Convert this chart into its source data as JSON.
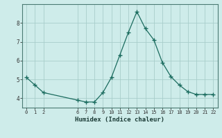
{
  "x": [
    0,
    1,
    2,
    6,
    7,
    8,
    9,
    10,
    11,
    12,
    13,
    14,
    15,
    16,
    17,
    18,
    19,
    20,
    21,
    22
  ],
  "y": [
    5.1,
    4.7,
    4.3,
    3.9,
    3.8,
    3.8,
    4.3,
    5.1,
    6.3,
    7.5,
    8.6,
    7.7,
    7.1,
    5.9,
    5.15,
    4.7,
    4.35,
    4.2,
    4.2,
    4.2
  ],
  "xticks": [
    0,
    1,
    2,
    6,
    7,
    8,
    9,
    10,
    11,
    12,
    13,
    14,
    15,
    16,
    17,
    18,
    19,
    20,
    21,
    22
  ],
  "yticks": [
    4,
    5,
    6,
    7,
    8
  ],
  "ylim": [
    3.5,
    9.0
  ],
  "xlim": [
    -0.5,
    22.5
  ],
  "xlabel": "Humidex (Indice chaleur)",
  "line_color": "#1a6b5e",
  "marker": "+",
  "bg_color": "#ceecea",
  "grid_color": "#a8ceca",
  "spine_color": "#4a7a72"
}
